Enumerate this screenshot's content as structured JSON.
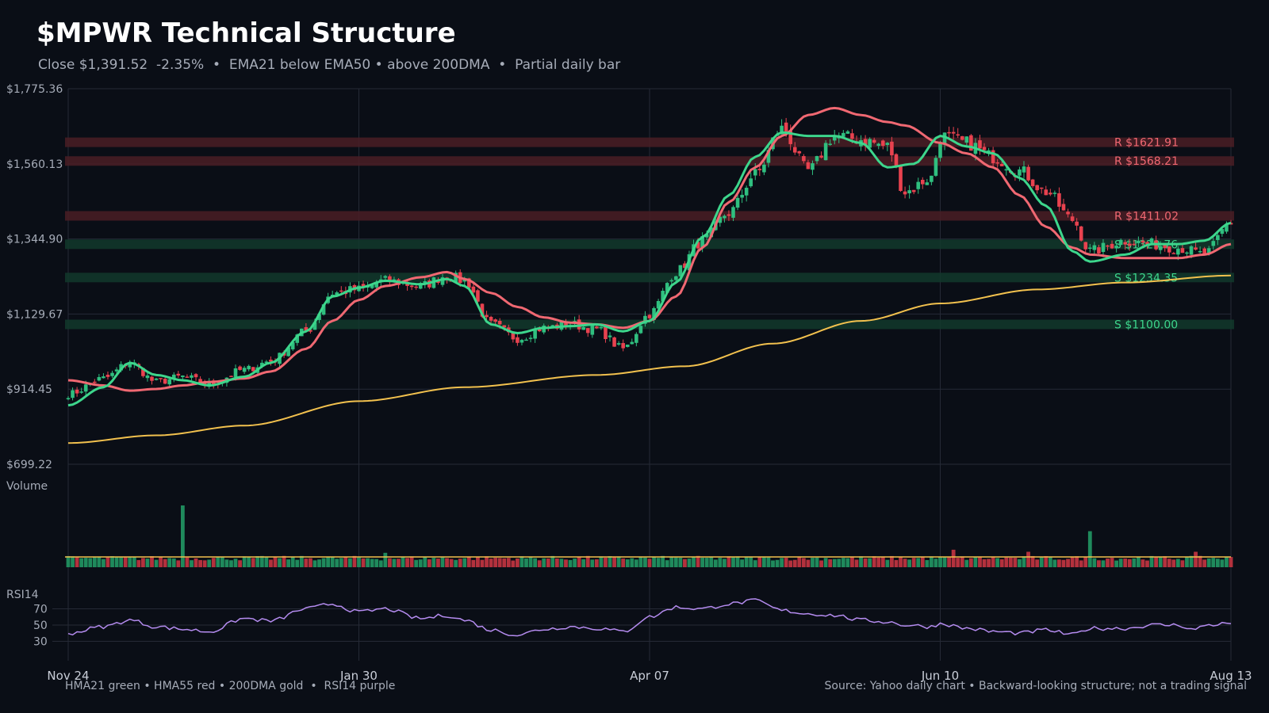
{
  "header": {
    "title": "$MPWR Technical Structure",
    "subtitle": "Close $1,391.52  -2.35%  •  EMA21 below EMA50 • above 200DMA  •  Partial daily bar"
  },
  "footer": {
    "legend_note": "HMA21 green • HMA55 red • 200DMA gold  •  RSI14 purple",
    "source_note": "Source: Yahoo daily chart • Backward-looking structure; not a trading signal"
  },
  "colors": {
    "background": "#0a0e16",
    "up": "#2fbf7f",
    "down": "#e8424f",
    "hma21": "#3dd68c",
    "hma55": "#f06872",
    "dma200": "#f2c14e",
    "rsi": "#b58cf0",
    "resistance_band": "#4a1d24",
    "support_band": "#12382c",
    "grid": "#252a36"
  },
  "chart_data": [
    {
      "type": "candlestick",
      "panel": "price",
      "ylim": [
        699.22,
        1775.36
      ],
      "ytick_labels": [
        "$1,775.36",
        "$1,560.13",
        "$1,344.90",
        "$1,129.67",
        "$914.45",
        "$699.22"
      ],
      "yticks": [
        1775.36,
        1560.13,
        1344.9,
        1129.67,
        914.45,
        699.22
      ],
      "x_tick_labels": [
        "Nov 24",
        "Jan 30",
        "Apr 07",
        "Jun 10",
        "Aug 13"
      ],
      "x_tick_index": [
        0,
        66,
        132,
        198,
        264
      ],
      "levels": [
        {
          "kind": "resistance",
          "label": "R $1621.91",
          "value": 1621.91
        },
        {
          "kind": "resistance",
          "label": "R $1568.21",
          "value": 1568.21
        },
        {
          "kind": "resistance",
          "label": "R $1411.02",
          "value": 1411.02
        },
        {
          "kind": "support",
          "label": "S $1329.76",
          "value": 1329.76
        },
        {
          "kind": "support",
          "label": "S $1234.35",
          "value": 1234.35
        },
        {
          "kind": "support",
          "label": "S $1100.00",
          "value": 1100.0
        }
      ],
      "close_anchors": [
        [
          0,
          900
        ],
        [
          8,
          945
        ],
        [
          14,
          990
        ],
        [
          20,
          935
        ],
        [
          26,
          950
        ],
        [
          32,
          928
        ],
        [
          40,
          970
        ],
        [
          46,
          995
        ],
        [
          54,
          1080
        ],
        [
          60,
          1190
        ],
        [
          66,
          1200
        ],
        [
          72,
          1225
        ],
        [
          80,
          1210
        ],
        [
          86,
          1240
        ],
        [
          90,
          1225
        ],
        [
          96,
          1100
        ],
        [
          102,
          1060
        ],
        [
          108,
          1090
        ],
        [
          114,
          1100
        ],
        [
          120,
          1085
        ],
        [
          126,
          1030
        ],
        [
          132,
          1130
        ],
        [
          138,
          1250
        ],
        [
          144,
          1340
        ],
        [
          150,
          1420
        ],
        [
          156,
          1530
        ],
        [
          162,
          1660
        ],
        [
          168,
          1540
        ],
        [
          174,
          1640
        ],
        [
          180,
          1630
        ],
        [
          186,
          1610
        ],
        [
          190,
          1480
        ],
        [
          196,
          1520
        ],
        [
          198,
          1640
        ],
        [
          204,
          1620
        ],
        [
          210,
          1580
        ],
        [
          216,
          1540
        ],
        [
          222,
          1480
        ],
        [
          228,
          1400
        ],
        [
          232,
          1310
        ],
        [
          240,
          1340
        ],
        [
          246,
          1330
        ],
        [
          252,
          1320
        ],
        [
          258,
          1300
        ],
        [
          264,
          1391.52
        ]
      ],
      "hma21_anchors": [
        [
          0,
          868
        ],
        [
          8,
          920
        ],
        [
          14,
          990
        ],
        [
          20,
          955
        ],
        [
          26,
          940
        ],
        [
          32,
          925
        ],
        [
          40,
          950
        ],
        [
          46,
          990
        ],
        [
          54,
          1080
        ],
        [
          60,
          1180
        ],
        [
          66,
          1205
        ],
        [
          72,
          1225
        ],
        [
          80,
          1215
        ],
        [
          86,
          1230
        ],
        [
          90,
          1210
        ],
        [
          96,
          1100
        ],
        [
          102,
          1075
        ],
        [
          108,
          1090
        ],
        [
          114,
          1095
        ],
        [
          120,
          1100
        ],
        [
          126,
          1080
        ],
        [
          132,
          1110
        ],
        [
          138,
          1220
        ],
        [
          144,
          1350
        ],
        [
          150,
          1470
        ],
        [
          156,
          1580
        ],
        [
          162,
          1650
        ],
        [
          168,
          1640
        ],
        [
          174,
          1640
        ],
        [
          180,
          1620
        ],
        [
          186,
          1550
        ],
        [
          192,
          1560
        ],
        [
          198,
          1640
        ],
        [
          204,
          1610
        ],
        [
          210,
          1590
        ],
        [
          216,
          1520
        ],
        [
          222,
          1440
        ],
        [
          228,
          1310
        ],
        [
          232,
          1280
        ],
        [
          240,
          1300
        ],
        [
          246,
          1330
        ],
        [
          252,
          1330
        ],
        [
          258,
          1340
        ],
        [
          264,
          1391
        ]
      ],
      "hma55_anchors": [
        [
          0,
          940
        ],
        [
          8,
          925
        ],
        [
          14,
          910
        ],
        [
          20,
          915
        ],
        [
          26,
          925
        ],
        [
          32,
          935
        ],
        [
          40,
          945
        ],
        [
          46,
          965
        ],
        [
          54,
          1030
        ],
        [
          60,
          1110
        ],
        [
          66,
          1170
        ],
        [
          72,
          1210
        ],
        [
          80,
          1235
        ],
        [
          86,
          1250
        ],
        [
          90,
          1230
        ],
        [
          96,
          1190
        ],
        [
          102,
          1150
        ],
        [
          108,
          1120
        ],
        [
          114,
          1105
        ],
        [
          120,
          1100
        ],
        [
          126,
          1090
        ],
        [
          132,
          1110
        ],
        [
          138,
          1180
        ],
        [
          144,
          1320
        ],
        [
          150,
          1450
        ],
        [
          156,
          1550
        ],
        [
          162,
          1640
        ],
        [
          168,
          1700
        ],
        [
          174,
          1720
        ],
        [
          180,
          1700
        ],
        [
          186,
          1680
        ],
        [
          190,
          1670
        ],
        [
          198,
          1620
        ],
        [
          204,
          1590
        ],
        [
          210,
          1550
        ],
        [
          216,
          1470
        ],
        [
          222,
          1380
        ],
        [
          228,
          1320
        ],
        [
          232,
          1300
        ],
        [
          240,
          1290
        ],
        [
          246,
          1290
        ],
        [
          252,
          1290
        ],
        [
          258,
          1300
        ],
        [
          264,
          1330
        ]
      ],
      "dma200_anchors": [
        [
          0,
          760
        ],
        [
          20,
          782
        ],
        [
          40,
          810
        ],
        [
          66,
          880
        ],
        [
          90,
          920
        ],
        [
          120,
          955
        ],
        [
          140,
          980
        ],
        [
          160,
          1045
        ],
        [
          180,
          1110
        ],
        [
          198,
          1160
        ],
        [
          220,
          1200
        ],
        [
          240,
          1220
        ],
        [
          264,
          1240
        ]
      ]
    },
    {
      "type": "bar",
      "panel": "volume",
      "label": "Volume",
      "baseline_level": 1.0,
      "spikes": [
        {
          "index": 26,
          "relative": 6.0
        },
        {
          "index": 232,
          "relative": 3.5
        },
        {
          "index": 201,
          "relative": 1.7
        },
        {
          "index": 218,
          "relative": 1.5
        },
        {
          "index": 256,
          "relative": 1.5
        },
        {
          "index": 72,
          "relative": 1.4
        }
      ]
    },
    {
      "type": "line",
      "panel": "rsi",
      "label": "RSI14",
      "ylim": [
        10,
        90
      ],
      "yticks": [
        70,
        50,
        30
      ],
      "ytick_labels": [
        "70",
        "50",
        "30"
      ],
      "anchors": [
        [
          0,
          40
        ],
        [
          8,
          48
        ],
        [
          14,
          56
        ],
        [
          20,
          48
        ],
        [
          26,
          45
        ],
        [
          32,
          42
        ],
        [
          40,
          58
        ],
        [
          46,
          55
        ],
        [
          54,
          70
        ],
        [
          60,
          76
        ],
        [
          66,
          66
        ],
        [
          72,
          70
        ],
        [
          80,
          58
        ],
        [
          86,
          62
        ],
        [
          90,
          56
        ],
        [
          96,
          44
        ],
        [
          102,
          38
        ],
        [
          108,
          45
        ],
        [
          114,
          48
        ],
        [
          120,
          46
        ],
        [
          126,
          42
        ],
        [
          132,
          60
        ],
        [
          138,
          72
        ],
        [
          144,
          70
        ],
        [
          150,
          76
        ],
        [
          156,
          80
        ],
        [
          162,
          68
        ],
        [
          168,
          64
        ],
        [
          174,
          62
        ],
        [
          180,
          56
        ],
        [
          186,
          54
        ],
        [
          190,
          50
        ],
        [
          196,
          48
        ],
        [
          198,
          52
        ],
        [
          204,
          46
        ],
        [
          210,
          42
        ],
        [
          216,
          40
        ],
        [
          222,
          44
        ],
        [
          228,
          38
        ],
        [
          232,
          46
        ],
        [
          240,
          46
        ],
        [
          246,
          50
        ],
        [
          252,
          50
        ],
        [
          256,
          44
        ],
        [
          258,
          50
        ],
        [
          264,
          52
        ]
      ]
    }
  ]
}
